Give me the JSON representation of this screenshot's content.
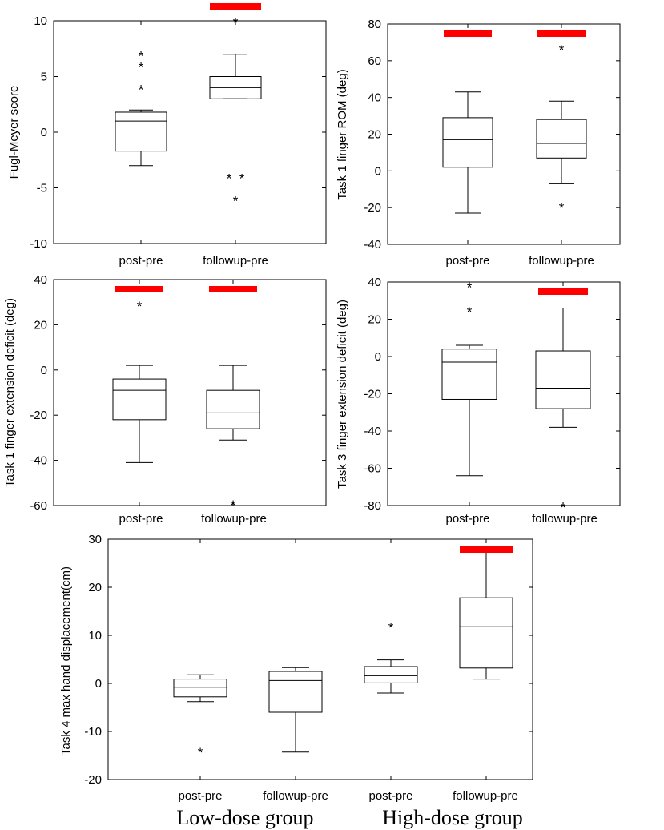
{
  "chart_data": [
    {
      "id": "p1",
      "type": "box",
      "ylabel": "Fugl-Meyer score",
      "ylim": [
        -10,
        10
      ],
      "yticks": [
        -10,
        -5,
        0,
        5,
        10
      ],
      "categories": [
        "post-pre",
        "followup-pre"
      ],
      "boxes": [
        {
          "category": "post-pre",
          "whisker_low": -3,
          "q1": -1.7,
          "median": 1,
          "q3": 1.8,
          "whisker_high": 2,
          "outliers": [
            4,
            6,
            7
          ]
        },
        {
          "category": "followup-pre",
          "whisker_low": 3,
          "q1": 3,
          "median": 4,
          "q3": 5,
          "whisker_high": 7,
          "outliers": [
            -6,
            -4,
            -4,
            10
          ]
        }
      ],
      "significance": [
        "followup-pre"
      ],
      "significance_color": "#ff0000"
    },
    {
      "id": "p2",
      "type": "box",
      "ylabel": "Task 1 finger ROM (deg)",
      "ylim": [
        -40,
        80
      ],
      "yticks": [
        -40,
        -20,
        0,
        20,
        40,
        60,
        80
      ],
      "categories": [
        "post-pre",
        "followup-pre"
      ],
      "boxes": [
        {
          "category": "post-pre",
          "whisker_low": -23,
          "q1": 2,
          "median": 17,
          "q3": 29,
          "whisker_high": 43,
          "outliers": []
        },
        {
          "category": "followup-pre",
          "whisker_low": -7,
          "q1": 7,
          "median": 15,
          "q3": 28,
          "whisker_high": 38,
          "outliers": [
            -19,
            67
          ]
        }
      ],
      "significance": [
        "post-pre",
        "followup-pre"
      ],
      "significance_color": "#ff0000"
    },
    {
      "id": "p3",
      "type": "box",
      "ylabel": "Task 1 finger extension deficit (deg)",
      "ylim": [
        -60,
        40
      ],
      "yticks": [
        -60,
        -40,
        -20,
        0,
        20,
        40
      ],
      "categories": [
        "post-pre",
        "followup-pre"
      ],
      "boxes": [
        {
          "category": "post-pre",
          "whisker_low": -41,
          "q1": -22,
          "median": -9,
          "q3": -4,
          "whisker_high": 2,
          "outliers": [
            29
          ]
        },
        {
          "category": "followup-pre",
          "whisker_low": -31,
          "q1": -26,
          "median": -19,
          "q3": -9,
          "whisker_high": 2,
          "outliers": [
            -59
          ]
        }
      ],
      "significance": [
        "post-pre",
        "followup-pre"
      ],
      "significance_color": "#ff0000"
    },
    {
      "id": "p4",
      "type": "box",
      "ylabel": "Task 3 finger extension deficit (deg)",
      "ylim": [
        -80,
        40
      ],
      "yticks": [
        -80,
        -60,
        -40,
        -20,
        0,
        20,
        40
      ],
      "categories": [
        "post-pre",
        "followup-pre"
      ],
      "boxes": [
        {
          "category": "post-pre",
          "whisker_low": -64,
          "q1": -23,
          "median": -3,
          "q3": 4,
          "whisker_high": 6,
          "outliers": [
            25,
            38
          ]
        },
        {
          "category": "followup-pre",
          "whisker_low": -38,
          "q1": -28,
          "median": -17,
          "q3": 3,
          "whisker_high": 26,
          "outliers": [
            -80
          ]
        }
      ],
      "significance": [
        "followup-pre"
      ],
      "significance_color": "#ff0000"
    },
    {
      "id": "p5",
      "type": "box",
      "ylabel": "Task 4 max hand displacement(cm)",
      "ylim": [
        -20,
        30
      ],
      "yticks": [
        -20,
        -10,
        0,
        10,
        20,
        30
      ],
      "categories": [
        "post-pre",
        "followup-pre",
        "post-pre",
        "followup-pre"
      ],
      "groups": [
        "Low-dose group",
        "High-dose group"
      ],
      "boxes": [
        {
          "category": "post-pre",
          "group": "Low-dose group",
          "whisker_low": -3.8,
          "q1": -2.8,
          "median": -0.8,
          "q3": 0.9,
          "whisker_high": 1.8,
          "outliers": [
            -14
          ]
        },
        {
          "category": "followup-pre",
          "group": "Low-dose group",
          "whisker_low": -14.3,
          "q1": -6,
          "median": 0.6,
          "q3": 2.5,
          "whisker_high": 3.3,
          "outliers": []
        },
        {
          "category": "post-pre",
          "group": "High-dose group",
          "whisker_low": -2,
          "q1": 0.1,
          "median": 1.6,
          "q3": 3.5,
          "whisker_high": 4.9,
          "outliers": [
            12
          ]
        },
        {
          "category": "followup-pre",
          "group": "High-dose group",
          "whisker_low": 0.9,
          "q1": 3.2,
          "median": 11.8,
          "q3": 17.8,
          "whisker_high": 27.8,
          "outliers": []
        }
      ],
      "significance": [
        3
      ],
      "significance_color": "#ff0000"
    }
  ]
}
